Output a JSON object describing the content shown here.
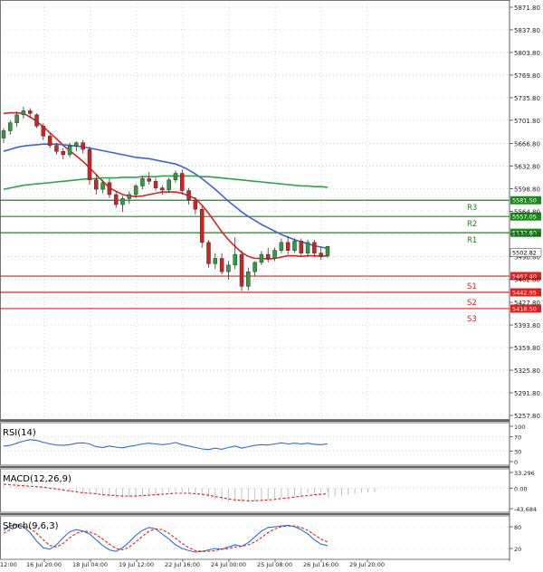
{
  "chart_data": {
    "type": "candlestick",
    "price_axis": {
      "min": 5257.8,
      "max": 5871.8,
      "ticks": [
        "5871.80",
        "5837.80",
        "5803.80",
        "5769.80",
        "5735.80",
        "5701.80",
        "5666.80",
        "5632.80",
        "5598.80",
        "5564.80",
        "5530.80",
        "5496.80",
        "5462.80",
        "5427.80",
        "5393.80",
        "5359.80",
        "5325.80",
        "5291.80",
        "5257.80"
      ]
    },
    "time_axis": {
      "labels": [
        "12:00",
        "16 Jul 20:00",
        "18 Jul 04:00",
        "19 Jul 12:00",
        "22 Jul 16:00",
        "24 Jul 00:00",
        "25 Jul 08:00",
        "26 Jul 16:00",
        "29 Jul 20:00"
      ]
    },
    "current_price": "5502.82",
    "levels": [
      {
        "name": "R3",
        "value": 5581.5,
        "label": "5581.50",
        "color": "#1a8a1a"
      },
      {
        "name": "R2",
        "value": 5557.05,
        "label": "5557.05",
        "color": "#1a8a1a"
      },
      {
        "name": "R1",
        "value": 5532.6,
        "label": "5532.60",
        "color": "#1a8a1a"
      },
      {
        "name": "S1",
        "value": 5467.4,
        "label": "5467.40",
        "color": "#e02020"
      },
      {
        "name": "S2",
        "value": 5442.95,
        "label": "5442.95",
        "color": "#e02020"
      },
      {
        "name": "S3",
        "value": 5418.5,
        "label": "5418.50",
        "color": "#e02020"
      }
    ],
    "candles": [
      [
        5675,
        5690,
        5668,
        5686
      ],
      [
        5686,
        5702,
        5680,
        5698
      ],
      [
        5698,
        5715,
        5692,
        5710
      ],
      [
        5710,
        5722,
        5704,
        5716
      ],
      [
        5716,
        5720,
        5705,
        5712
      ],
      [
        5710,
        5712,
        5690,
        5693
      ],
      [
        5693,
        5697,
        5672,
        5678
      ],
      [
        5678,
        5682,
        5660,
        5664
      ],
      [
        5664,
        5668,
        5650,
        5655
      ],
      [
        5655,
        5660,
        5643,
        5650
      ],
      [
        5650,
        5668,
        5646,
        5663
      ],
      [
        5663,
        5670,
        5655,
        5668
      ],
      [
        5668,
        5672,
        5652,
        5658
      ],
      [
        5658,
        5662,
        5605,
        5612
      ],
      [
        5612,
        5620,
        5590,
        5598
      ],
      [
        5598,
        5612,
        5592,
        5608
      ],
      [
        5608,
        5614,
        5585,
        5590
      ],
      [
        5590,
        5595,
        5570,
        5575
      ],
      [
        5575,
        5588,
        5564,
        5584
      ],
      [
        5584,
        5595,
        5576,
        5590
      ],
      [
        5590,
        5606,
        5585,
        5603
      ],
      [
        5603,
        5618,
        5598,
        5614
      ],
      [
        5614,
        5624,
        5605,
        5610
      ],
      [
        5610,
        5615,
        5596,
        5600
      ],
      [
        5600,
        5604,
        5590,
        5597
      ],
      [
        5597,
        5615,
        5592,
        5612
      ],
      [
        5612,
        5626,
        5608,
        5622
      ],
      [
        5622,
        5628,
        5590,
        5596
      ],
      [
        5596,
        5600,
        5575,
        5582
      ],
      [
        5582,
        5586,
        5560,
        5568
      ],
      [
        5568,
        5572,
        5510,
        5518
      ],
      [
        5518,
        5522,
        5480,
        5486
      ],
      [
        5486,
        5502,
        5478,
        5494
      ],
      [
        5494,
        5502,
        5470,
        5474
      ],
      [
        5474,
        5490,
        5462,
        5484
      ],
      [
        5484,
        5526,
        5478,
        5500
      ],
      [
        5500,
        5506,
        5445,
        5452
      ],
      [
        5452,
        5480,
        5446,
        5474
      ],
      [
        5474,
        5490,
        5468,
        5488
      ],
      [
        5488,
        5505,
        5484,
        5500
      ],
      [
        5500,
        5510,
        5488,
        5494
      ],
      [
        5494,
        5510,
        5490,
        5506
      ],
      [
        5506,
        5524,
        5502,
        5518
      ],
      [
        5518,
        5528,
        5500,
        5506
      ],
      [
        5506,
        5524,
        5502,
        5520
      ],
      [
        5520,
        5524,
        5498,
        5502
      ],
      [
        5502,
        5522,
        5496,
        5518
      ],
      [
        5518,
        5522,
        5496,
        5502
      ],
      [
        5502,
        5510,
        5492,
        5498
      ],
      [
        5498,
        5513,
        5495,
        5512
      ]
    ],
    "moving_averages": [
      {
        "color": "#e02020",
        "values": [
          5712,
          5713,
          5713,
          5712,
          5707,
          5700,
          5692,
          5683,
          5674,
          5664,
          5656,
          5648,
          5640,
          5630,
          5620,
          5610,
          5600,
          5595,
          5590,
          5588,
          5587,
          5588,
          5590,
          5592,
          5594,
          5594,
          5594,
          5592,
          5588,
          5584,
          5574,
          5562,
          5548,
          5534,
          5522,
          5512,
          5503,
          5497,
          5494,
          5494,
          5493,
          5494,
          5496,
          5498,
          5498,
          5497,
          5498,
          5498,
          5497,
          5498
        ]
      },
      {
        "color": "#3a64d8",
        "values": [
          5655,
          5658,
          5661,
          5663,
          5664,
          5665,
          5666,
          5666,
          5666,
          5665,
          5664,
          5663,
          5662,
          5660,
          5658,
          5656,
          5654,
          5652,
          5650,
          5648,
          5646,
          5645,
          5644,
          5642,
          5640,
          5638,
          5636,
          5632,
          5627,
          5621,
          5614,
          5606,
          5598,
          5589,
          5580,
          5572,
          5564,
          5557,
          5551,
          5545,
          5540,
          5535,
          5530,
          5526,
          5522,
          5519,
          5516,
          5513,
          5511,
          5509
        ]
      },
      {
        "color": "#2aa64a",
        "values": [
          5598,
          5600,
          5602,
          5604,
          5605,
          5606,
          5607,
          5608,
          5609,
          5610,
          5611,
          5612,
          5613,
          5614,
          5614,
          5615,
          5615,
          5615,
          5616,
          5616,
          5616,
          5617,
          5617,
          5617,
          5618,
          5618,
          5618,
          5618,
          5618,
          5618,
          5617,
          5617,
          5616,
          5615,
          5614,
          5613,
          5612,
          5611,
          5610,
          5609,
          5608,
          5607,
          5606,
          5605,
          5604,
          5603,
          5603,
          5602,
          5602,
          5601
        ]
      }
    ],
    "indicators": [
      {
        "name": "RSI(14)",
        "ticks": [
          "100",
          "70",
          "30",
          "0"
        ],
        "min": 0,
        "max": 100,
        "series": [
          {
            "color": "#2a6fd6",
            "dash": false,
            "values": [
              44,
              46,
              52,
              58,
              62,
              60,
              55,
              50,
              47,
              46,
              48,
              52,
              53,
              50,
              42,
              40,
              44,
              41,
              39,
              43,
              46,
              50,
              52,
              50,
              48,
              50,
              54,
              48,
              44,
              40,
              36,
              34,
              38,
              35,
              40,
              44,
              38,
              42,
              46,
              48,
              47,
              50,
              53,
              50,
              52,
              50,
              52,
              49,
              48,
              50
            ]
          }
        ]
      },
      {
        "name": "MACD(12,26,9)",
        "ticks": [
          "33.296",
          "0.00",
          "-43.684"
        ],
        "min": -43.684,
        "max": 33.296,
        "histogram": [
          6,
          5,
          4,
          3,
          2,
          1,
          0,
          -2,
          -4,
          -6,
          -8,
          -10,
          -11,
          -12,
          -14,
          -16,
          -18,
          -20,
          -20,
          -19,
          -18,
          -16,
          -14,
          -12,
          -10,
          -9,
          -8,
          -9,
          -10,
          -12,
          -15,
          -19,
          -24,
          -27,
          -29,
          -30,
          -31,
          -30,
          -28,
          -26,
          -24,
          -22,
          -20,
          -18,
          -16,
          -14,
          -12,
          -10,
          -9,
          -8
        ],
        "series": [
          {
            "color": "#e02020",
            "dash": true,
            "values": [
              8,
              7,
              6,
              5,
              4,
              3,
              2,
              0,
              -2,
              -4,
              -6,
              -8,
              -10,
              -11,
              -12,
              -14,
              -15,
              -16,
              -17,
              -17,
              -17,
              -16,
              -15,
              -14,
              -13,
              -12,
              -11,
              -11,
              -11,
              -12,
              -13,
              -15,
              -18,
              -20,
              -23,
              -25,
              -26,
              -27,
              -27,
              -26,
              -25,
              -24,
              -22,
              -21,
              -19,
              -17,
              -16,
              -14,
              -13,
              -12
            ]
          }
        ]
      },
      {
        "name": "Stoch(9,6,3)",
        "ticks": [
          "80",
          "20"
        ],
        "min": 0,
        "max": 100,
        "series": [
          {
            "color": "#2a6fd6",
            "dash": false,
            "values": [
              70,
              82,
              86,
              80,
              64,
              40,
              22,
              18,
              30,
              50,
              66,
              72,
              68,
              60,
              44,
              28,
              16,
              12,
              22,
              38,
              56,
              70,
              78,
              74,
              60,
              46,
              30,
              20,
              14,
              10,
              12,
              16,
              20,
              18,
              24,
              30,
              26,
              36,
              52,
              68,
              78,
              80,
              82,
              84,
              80,
              72,
              60,
              44,
              32,
              28
            ]
          },
          {
            "color": "#e02020",
            "dash": true,
            "values": [
              62,
              72,
              80,
              82,
              76,
              62,
              44,
              28,
              24,
              34,
              50,
              62,
              68,
              66,
              58,
              46,
              32,
              20,
              16,
              24,
              38,
              54,
              68,
              74,
              72,
              62,
              48,
              34,
              22,
              14,
              12,
              12,
              14,
              18,
              20,
              24,
              26,
              30,
              38,
              50,
              64,
              74,
              80,
              82,
              82,
              78,
              70,
              58,
              46,
              38
            ]
          }
        ]
      }
    ]
  }
}
